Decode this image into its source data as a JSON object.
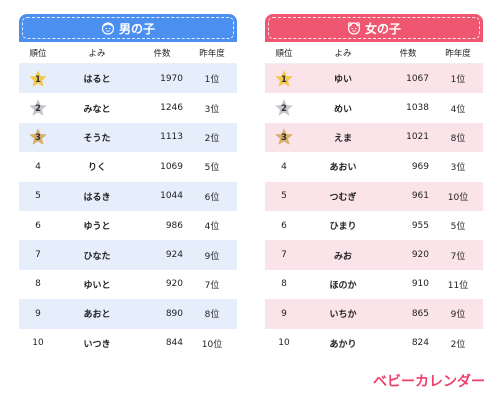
{
  "boys": {
    "title": "男の子",
    "headers": {
      "rank": "順位",
      "yomi": "よみ",
      "count": "件数",
      "last": "昨年度"
    },
    "rows": [
      {
        "rank": "1",
        "yomi": "はると",
        "count": "1970",
        "last": "1位"
      },
      {
        "rank": "2",
        "yomi": "みなと",
        "count": "1246",
        "last": "3位"
      },
      {
        "rank": "3",
        "yomi": "そうた",
        "count": "1113",
        "last": "2位"
      },
      {
        "rank": "4",
        "yomi": "りく",
        "count": "1069",
        "last": "5位"
      },
      {
        "rank": "5",
        "yomi": "はるき",
        "count": "1044",
        "last": "6位"
      },
      {
        "rank": "6",
        "yomi": "ゆうと",
        "count": "986",
        "last": "4位"
      },
      {
        "rank": "7",
        "yomi": "ひなた",
        "count": "924",
        "last": "9位"
      },
      {
        "rank": "8",
        "yomi": "ゆいと",
        "count": "920",
        "last": "7位"
      },
      {
        "rank": "9",
        "yomi": "あおと",
        "count": "890",
        "last": "8位"
      },
      {
        "rank": "10",
        "yomi": "いつき",
        "count": "844",
        "last": "10位"
      }
    ]
  },
  "girls": {
    "title": "女の子",
    "headers": {
      "rank": "順位",
      "yomi": "よみ",
      "count": "件数",
      "last": "昨年度"
    },
    "rows": [
      {
        "rank": "1",
        "yomi": "ゆい",
        "count": "1067",
        "last": "1位"
      },
      {
        "rank": "2",
        "yomi": "めい",
        "count": "1038",
        "last": "4位"
      },
      {
        "rank": "3",
        "yomi": "えま",
        "count": "1021",
        "last": "8位"
      },
      {
        "rank": "4",
        "yomi": "あおい",
        "count": "969",
        "last": "3位"
      },
      {
        "rank": "5",
        "yomi": "つむぎ",
        "count": "961",
        "last": "10位"
      },
      {
        "rank": "6",
        "yomi": "ひまり",
        "count": "955",
        "last": "5位"
      },
      {
        "rank": "7",
        "yomi": "みお",
        "count": "920",
        "last": "7位"
      },
      {
        "rank": "8",
        "yomi": "ほのか",
        "count": "910",
        "last": "11位"
      },
      {
        "rank": "9",
        "yomi": "いちか",
        "count": "865",
        "last": "9位"
      },
      {
        "rank": "10",
        "yomi": "あかり",
        "count": "824",
        "last": "2位"
      }
    ]
  },
  "colors": {
    "boys_accent": "#4b8ff0",
    "girls_accent": "#ef5670",
    "gold_star": "#f5c84a",
    "silver_star": "#c4c6cc",
    "bronze_star": "#d9ad6a",
    "brand": "#ee3f6a"
  },
  "icons": {
    "boys": "boy-face-icon",
    "girls": "girl-face-icon",
    "medal": "star-icon"
  },
  "brand": "ベビーカレンダー"
}
